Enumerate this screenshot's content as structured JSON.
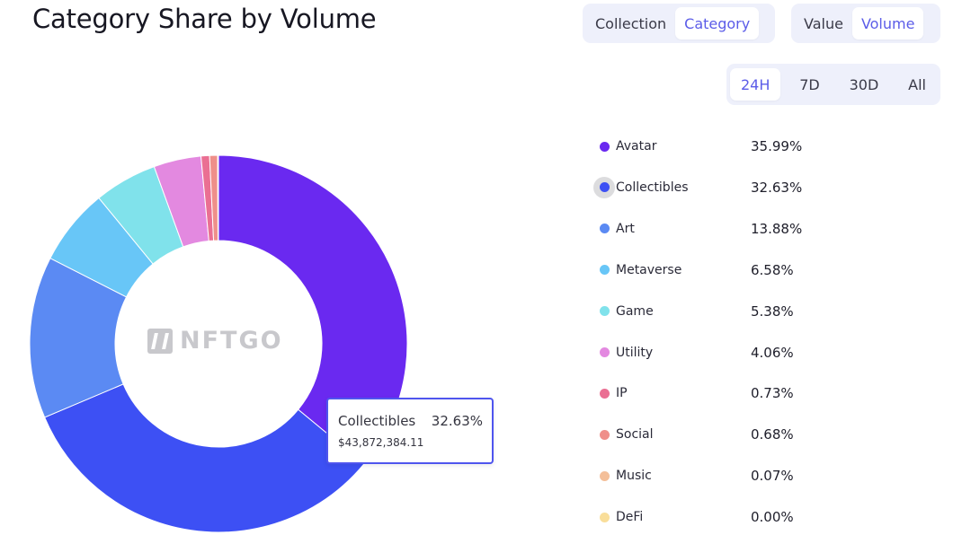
{
  "header": {
    "title": "Category Share by Volume"
  },
  "toggles": {
    "group_a": [
      {
        "label": "Collection",
        "active": false
      },
      {
        "label": "Category",
        "active": true
      }
    ],
    "group_b": [
      {
        "label": "Value",
        "active": false
      },
      {
        "label": "Volume",
        "active": true
      }
    ],
    "timeframes": [
      {
        "label": "24H",
        "active": true
      },
      {
        "label": "7D",
        "active": false
      },
      {
        "label": "30D",
        "active": false
      },
      {
        "label": "All",
        "active": false
      }
    ]
  },
  "watermark": {
    "text": "NFTGO"
  },
  "tooltip": {
    "name": "Collectibles",
    "pct": "32.63%",
    "value": "$43,872,384.11"
  },
  "chart_data": {
    "type": "pie",
    "donut": true,
    "title": "Category Share by Volume",
    "unit": "%",
    "categories": [
      "Avatar",
      "Collectibles",
      "Art",
      "Metaverse",
      "Game",
      "Utility",
      "IP",
      "Social",
      "Music",
      "DeFi"
    ],
    "values": [
      35.99,
      32.63,
      13.88,
      6.58,
      5.38,
      4.06,
      0.73,
      0.68,
      0.07,
      0.0
    ],
    "labels": [
      "35.99%",
      "32.63%",
      "13.88%",
      "6.58%",
      "5.38%",
      "4.06%",
      "0.73%",
      "0.68%",
      "0.07%",
      "0.00%"
    ],
    "colors": [
      "#6a29f0",
      "#3d50f4",
      "#5b8af3",
      "#68c6f7",
      "#80e2eb",
      "#e389e0",
      "#ea6f93",
      "#ef8f8a",
      "#f4bf99",
      "#f9de9a"
    ],
    "highlighted": "Collectibles",
    "legend_position": "right"
  }
}
